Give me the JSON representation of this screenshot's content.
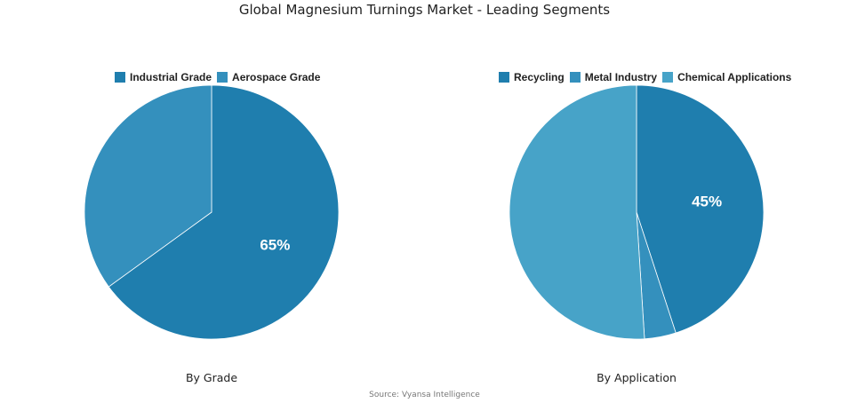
{
  "title": "Global Magnesium Turnings Market - Leading Segments",
  "source": "Source: Vyansa Intelligence",
  "chart_data": [
    {
      "type": "pie",
      "subtitle": "By Grade",
      "legend_position": "top",
      "slices": [
        {
          "name": "Industrial Grade",
          "value": 65,
          "color": "#1f7eae",
          "label": "65%"
        },
        {
          "name": "Aerospace Grade",
          "value": 35,
          "color": "#3490bd",
          "label": ""
        }
      ]
    },
    {
      "type": "pie",
      "subtitle": "By Application",
      "legend_position": "top",
      "slices": [
        {
          "name": "Recycling",
          "value": 45,
          "color": "#1f7eae",
          "label": "45%"
        },
        {
          "name": "Metal Industry",
          "value": 4,
          "color": "#3490bd",
          "label": ""
        },
        {
          "name": "Chemical Applications",
          "value": 51,
          "color": "#47a3c8",
          "label": ""
        }
      ]
    }
  ]
}
